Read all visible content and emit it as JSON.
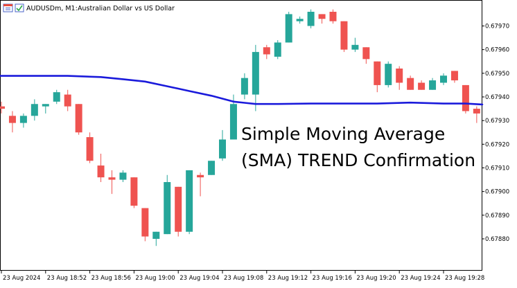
{
  "header": {
    "symbol_timeframe": "AUDUSDm, M1:",
    "description": "Australian Dollar vs US Dollar"
  },
  "annotation": {
    "line1": "Simple Moving Average",
    "line2": "(SMA) TREND Confirmation"
  },
  "colors": {
    "bull": "#26a69a",
    "bear": "#ef5350",
    "sma": "#1a1adb",
    "axis": "#000000"
  },
  "chart_data": {
    "type": "candlestick",
    "symbol": "AUDUSDm",
    "timeframe": "M1",
    "y_tick_labels": [
      "0.67970",
      "0.67960",
      "0.67950",
      "0.67940",
      "0.67930",
      "0.67920",
      "0.67910",
      "0.67900",
      "0.67890",
      "0.67880"
    ],
    "x_tick_labels": [
      "23 Aug 2024",
      "23 Aug 18:52",
      "23 Aug 18:56",
      "23 Aug 19:00",
      "23 Aug 19:04",
      "23 Aug 19:08",
      "23 Aug 19:12",
      "23 Aug 19:16",
      "23 Aug 19:20",
      "23 Aug 19:24",
      "23 Aug 19:28"
    ],
    "ylim": [
      0.67874,
      0.67982
    ],
    "candles": [
      {
        "o": 0.67936,
        "h": 0.67938,
        "l": 0.67933,
        "c": 0.67935
      },
      {
        "o": 0.67932,
        "h": 0.67934,
        "l": 0.67925,
        "c": 0.67929
      },
      {
        "o": 0.67929,
        "h": 0.67933,
        "l": 0.67927,
        "c": 0.67932
      },
      {
        "o": 0.67932,
        "h": 0.67939,
        "l": 0.6793,
        "c": 0.67937
      },
      {
        "o": 0.67936,
        "h": 0.67937,
        "l": 0.67933,
        "c": 0.67937
      },
      {
        "o": 0.67938,
        "h": 0.67943,
        "l": 0.67937,
        "c": 0.67942
      },
      {
        "o": 0.67941,
        "h": 0.67943,
        "l": 0.67934,
        "c": 0.67936
      },
      {
        "o": 0.67937,
        "h": 0.67937,
        "l": 0.67924,
        "c": 0.67925
      },
      {
        "o": 0.67923,
        "h": 0.67925,
        "l": 0.67912,
        "c": 0.67913
      },
      {
        "o": 0.67911,
        "h": 0.67916,
        "l": 0.67904,
        "c": 0.67906
      },
      {
        "o": 0.67906,
        "h": 0.67909,
        "l": 0.67899,
        "c": 0.67905
      },
      {
        "o": 0.67905,
        "h": 0.67909,
        "l": 0.67904,
        "c": 0.67908
      },
      {
        "o": 0.67906,
        "h": 0.67906,
        "l": 0.67893,
        "c": 0.67894
      },
      {
        "o": 0.67893,
        "h": 0.67893,
        "l": 0.67879,
        "c": 0.67881
      },
      {
        "o": 0.6788,
        "h": 0.67883,
        "l": 0.67877,
        "c": 0.67883
      },
      {
        "o": 0.67882,
        "h": 0.67907,
        "l": 0.67882,
        "c": 0.67904
      },
      {
        "o": 0.67902,
        "h": 0.67902,
        "l": 0.67881,
        "c": 0.67883
      },
      {
        "o": 0.67883,
        "h": 0.67909,
        "l": 0.67882,
        "c": 0.67909
      },
      {
        "o": 0.67907,
        "h": 0.67908,
        "l": 0.67898,
        "c": 0.67906
      },
      {
        "o": 0.67907,
        "h": 0.67913,
        "l": 0.67907,
        "c": 0.67913
      },
      {
        "o": 0.67914,
        "h": 0.67926,
        "l": 0.67913,
        "c": 0.67922
      },
      {
        "o": 0.67922,
        "h": 0.67941,
        "l": 0.67922,
        "c": 0.67937
      },
      {
        "o": 0.67941,
        "h": 0.6795,
        "l": 0.67939,
        "c": 0.67948
      },
      {
        "o": 0.67941,
        "h": 0.67962,
        "l": 0.67934,
        "c": 0.67959
      },
      {
        "o": 0.67961,
        "h": 0.67962,
        "l": 0.67956,
        "c": 0.67958
      },
      {
        "o": 0.67957,
        "h": 0.67964,
        "l": 0.67956,
        "c": 0.67963
      },
      {
        "o": 0.67963,
        "h": 0.67976,
        "l": 0.67963,
        "c": 0.67975
      },
      {
        "o": 0.67972,
        "h": 0.67974,
        "l": 0.67971,
        "c": 0.67973
      },
      {
        "o": 0.6797,
        "h": 0.67977,
        "l": 0.67969,
        "c": 0.67976
      },
      {
        "o": 0.67975,
        "h": 0.67975,
        "l": 0.67971,
        "c": 0.67973
      },
      {
        "o": 0.67976,
        "h": 0.67977,
        "l": 0.67971,
        "c": 0.67972
      },
      {
        "o": 0.67972,
        "h": 0.67972,
        "l": 0.67959,
        "c": 0.6796
      },
      {
        "o": 0.6796,
        "h": 0.67965,
        "l": 0.67959,
        "c": 0.67962
      },
      {
        "o": 0.67961,
        "h": 0.67961,
        "l": 0.67954,
        "c": 0.67956
      },
      {
        "o": 0.67955,
        "h": 0.67955,
        "l": 0.67942,
        "c": 0.67945
      },
      {
        "o": 0.67945,
        "h": 0.67955,
        "l": 0.67944,
        "c": 0.67954
      },
      {
        "o": 0.67952,
        "h": 0.67953,
        "l": 0.67943,
        "c": 0.67946
      },
      {
        "o": 0.67948,
        "h": 0.67949,
        "l": 0.67943,
        "c": 0.67943
      },
      {
        "o": 0.67946,
        "h": 0.67947,
        "l": 0.67943,
        "c": 0.67943
      },
      {
        "o": 0.67943,
        "h": 0.67948,
        "l": 0.67943,
        "c": 0.67947
      },
      {
        "o": 0.67946,
        "h": 0.6795,
        "l": 0.67945,
        "c": 0.67949
      },
      {
        "o": 0.67951,
        "h": 0.67951,
        "l": 0.67946,
        "c": 0.67947
      },
      {
        "o": 0.67945,
        "h": 0.67945,
        "l": 0.67933,
        "c": 0.67934
      },
      {
        "o": 0.67935,
        "h": 0.67936,
        "l": 0.67929,
        "c": 0.67933
      }
    ],
    "sma_points": [
      [
        0,
        0.679489
      ],
      [
        3,
        0.679489
      ],
      [
        6,
        0.679489
      ],
      [
        9,
        0.679484
      ],
      [
        11,
        0.679475
      ],
      [
        13,
        0.679465
      ],
      [
        15,
        0.679445
      ],
      [
        17,
        0.679425
      ],
      [
        19,
        0.679405
      ],
      [
        21,
        0.67938
      ],
      [
        22,
        0.679375
      ],
      [
        23,
        0.67937
      ],
      [
        25,
        0.67937
      ],
      [
        28,
        0.679372
      ],
      [
        31,
        0.679372
      ],
      [
        34,
        0.679372
      ],
      [
        37,
        0.679376
      ],
      [
        40,
        0.679372
      ],
      [
        42,
        0.679372
      ],
      [
        43.5,
        0.679368
      ]
    ],
    "grid": false,
    "legend": "none"
  }
}
